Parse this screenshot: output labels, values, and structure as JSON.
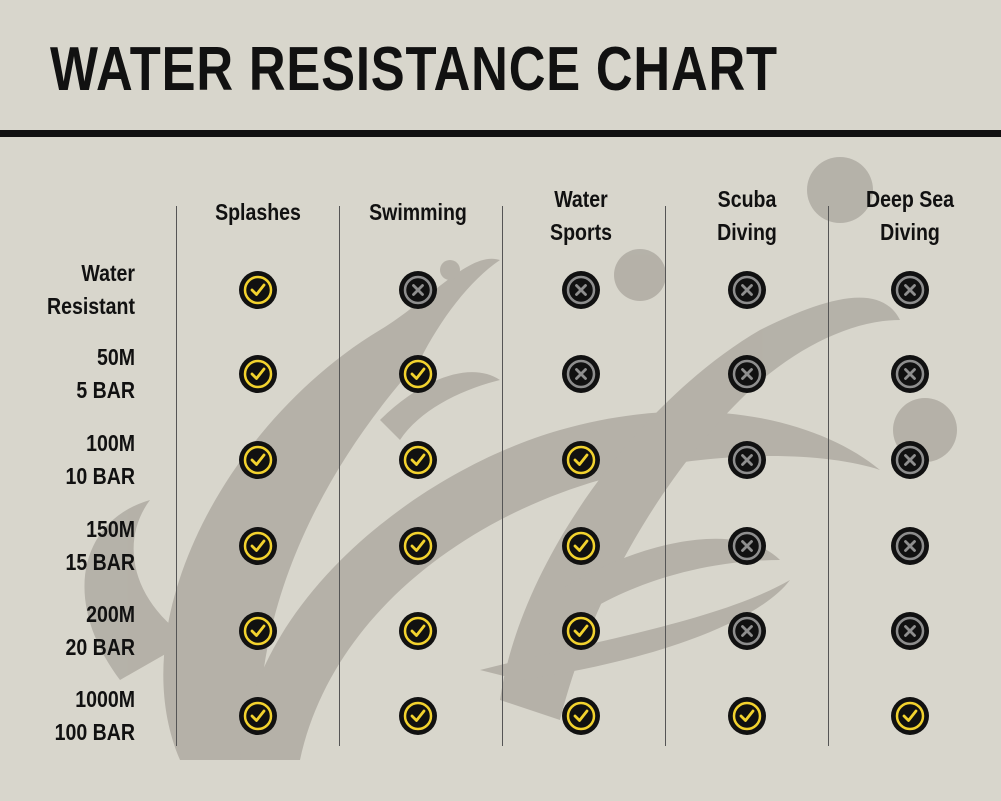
{
  "title": "WATER RESISTANCE CHART",
  "columns": [
    {
      "lines": [
        "Splashes"
      ]
    },
    {
      "lines": [
        "Swimming"
      ]
    },
    {
      "lines": [
        "Water",
        "Sports"
      ]
    },
    {
      "lines": [
        "Scuba",
        "Diving"
      ]
    },
    {
      "lines": [
        "Deep Sea",
        "Diving"
      ]
    }
  ],
  "rows": [
    {
      "lines": [
        "Water",
        "Resistant"
      ],
      "values": [
        true,
        false,
        false,
        false,
        false
      ]
    },
    {
      "lines": [
        "50M",
        "5 BAR"
      ],
      "values": [
        true,
        true,
        false,
        false,
        false
      ]
    },
    {
      "lines": [
        "100M",
        "10 BAR"
      ],
      "values": [
        true,
        true,
        true,
        false,
        false
      ]
    },
    {
      "lines": [
        "150M",
        "15 BAR"
      ],
      "values": [
        true,
        true,
        true,
        false,
        false
      ]
    },
    {
      "lines": [
        "200M",
        "20 BAR"
      ],
      "values": [
        true,
        true,
        true,
        false,
        false
      ]
    },
    {
      "lines": [
        "1000M",
        "100 BAR"
      ],
      "values": [
        true,
        true,
        true,
        true,
        true
      ]
    }
  ],
  "icons": {
    "yes": "check-circle-icon",
    "no": "x-circle-icon"
  },
  "colors": {
    "background": "#d8d6cc",
    "yes_accent": "#f2d22e",
    "no_accent": "#8e8e8e",
    "ink": "#111111",
    "decoration": "#aaa59d"
  }
}
